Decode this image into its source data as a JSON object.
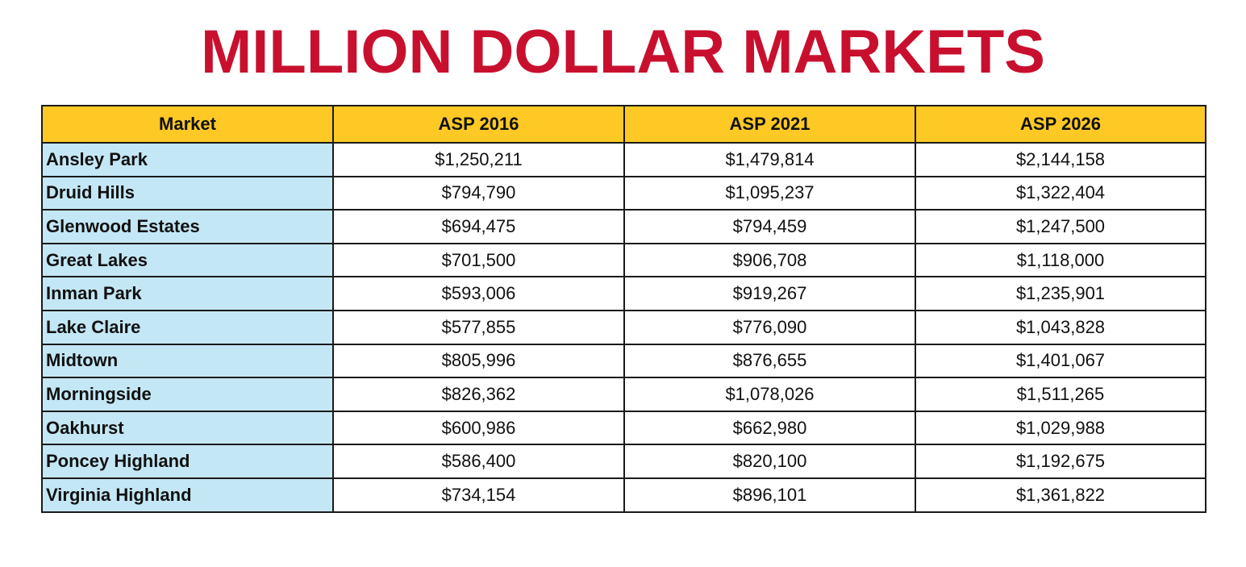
{
  "title": "MILLION DOLLAR MARKETS",
  "table": {
    "headers": [
      "Market",
      "ASP 2016",
      "ASP 2021",
      "ASP 2026"
    ],
    "rows": [
      [
        "Ansley Park",
        "$1,250,211",
        "$1,479,814",
        "$2,144,158"
      ],
      [
        "Druid Hills",
        "$794,790",
        "$1,095,237",
        "$1,322,404"
      ],
      [
        "Glenwood Estates",
        "$694,475",
        "$794,459",
        "$1,247,500"
      ],
      [
        "Great Lakes",
        "$701,500",
        "$906,708",
        "$1,118,000"
      ],
      [
        "Inman Park",
        "$593,006",
        "$919,267",
        "$1,235,901"
      ],
      [
        "Lake Claire",
        "$577,855",
        "$776,090",
        "$1,043,828"
      ],
      [
        "Midtown",
        "$805,996",
        "$876,655",
        "$1,401,067"
      ],
      [
        "Morningside",
        "$826,362",
        "$1,078,026",
        "$1,511,265"
      ],
      [
        "Oakhurst",
        "$600,986",
        "$662,980",
        "$1,029,988"
      ],
      [
        "Poncey Highland",
        "$586,400",
        "$820,100",
        "$1,192,675"
      ],
      [
        "Virginia Highland",
        "$734,154",
        "$896,101",
        "$1,361,822"
      ]
    ]
  },
  "colors": {
    "title": "#c8102e",
    "header_bg": "#fec925",
    "market_bg": "#c4e7f5",
    "border": "#1a1a1a"
  }
}
